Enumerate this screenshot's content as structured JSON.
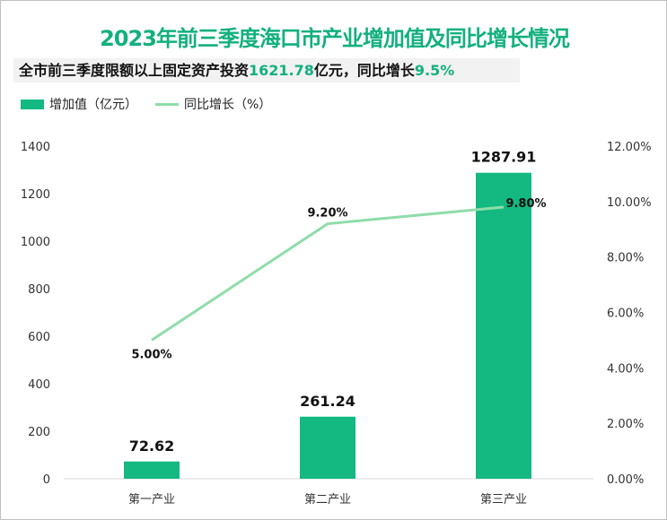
{
  "title": "2023年前三季度海口市产业增加值及同比增长情况",
  "subtitle": {
    "prefix": "全市前三季度限额以上固定资产投资",
    "value1": "1621.78",
    "mid": "亿元，同比增长",
    "value2": "9.5%"
  },
  "colors": {
    "bar": "#13b981",
    "line": "#8fdcaa",
    "title": "#13b07e"
  },
  "chart_data": {
    "type": "bar+line",
    "categories": [
      "第一产业",
      "第二产业",
      "第三产业"
    ],
    "series": [
      {
        "name": "增加值（亿元）",
        "type": "bar",
        "axis": "left",
        "values": [
          72.62,
          261.24,
          1287.91
        ],
        "labels": [
          "72.62",
          "261.24",
          "1287.91"
        ]
      },
      {
        "name": "同比增长（%）",
        "type": "line",
        "axis": "right",
        "values": [
          5.0,
          9.2,
          9.8
        ],
        "labels": [
          "5.00%",
          "9.20%",
          "9.80%"
        ]
      }
    ],
    "left_axis": {
      "ylim": [
        0,
        1400
      ],
      "ticks": [
        "0",
        "200",
        "400",
        "600",
        "800",
        "1000",
        "1200",
        "1400"
      ]
    },
    "right_axis": {
      "ylim": [
        0,
        12
      ],
      "ticks": [
        "0.00%",
        "2.00%",
        "4.00%",
        "6.00%",
        "8.00%",
        "10.00%",
        "12.00%"
      ]
    },
    "grid": false,
    "legend": "top-left"
  }
}
